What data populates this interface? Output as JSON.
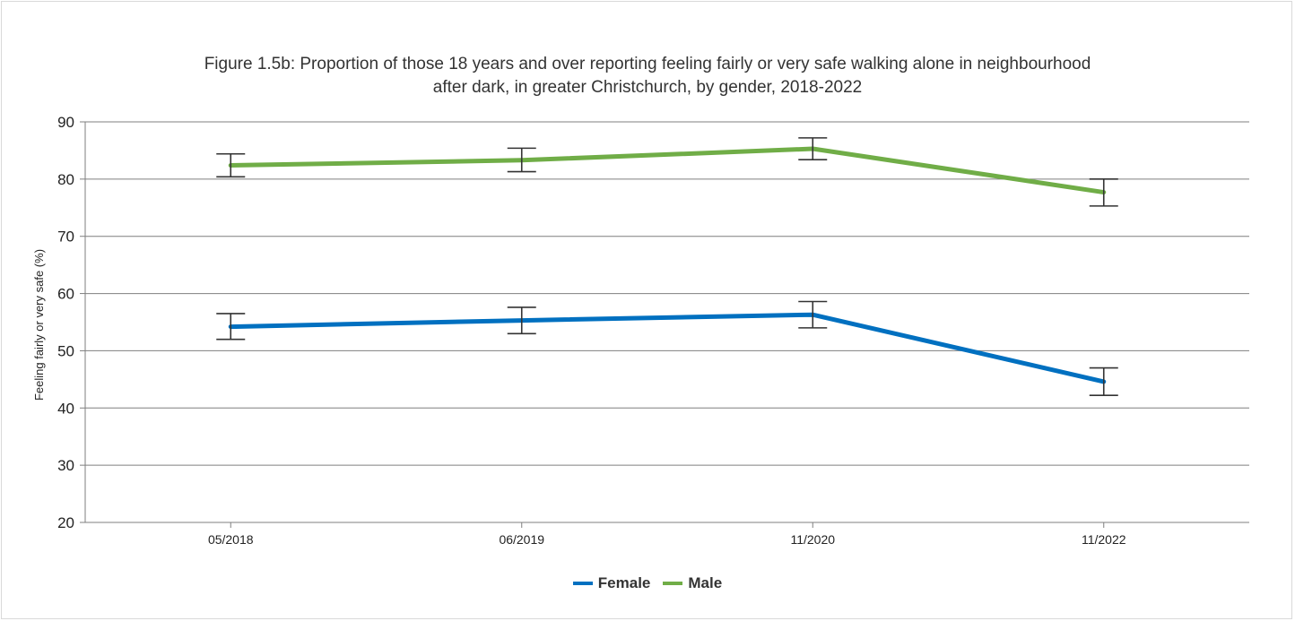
{
  "chart_data": {
    "type": "line",
    "title_lines": [
      "Figure 1.5b: Proportion of those 18 years and over reporting feeling fairly or very safe walking alone in neighbourhood",
      "after dark, in greater Christchurch, by gender, 2018-2022"
    ],
    "xlabel": "",
    "ylabel": "Feeling fairly or very safe (%)",
    "ylim": [
      20,
      90
    ],
    "yticks": [
      "20",
      "30",
      "40",
      "50",
      "60",
      "70",
      "80",
      "90"
    ],
    "grid": true,
    "legend_position": "bottom",
    "categories": [
      "05/2018",
      "06/2019",
      "11/2020",
      "11/2022"
    ],
    "series": [
      {
        "name": "Female",
        "color": "#0070c0",
        "values": [
          54.2,
          55.3,
          56.3,
          44.6
        ],
        "error_low": [
          52.0,
          53.0,
          54.0,
          42.2
        ],
        "error_high": [
          56.5,
          57.6,
          58.6,
          47.0
        ]
      },
      {
        "name": "Male",
        "color": "#70ad47",
        "values": [
          82.4,
          83.3,
          85.3,
          77.7
        ],
        "error_low": [
          80.4,
          81.3,
          83.4,
          75.3
        ],
        "error_high": [
          84.4,
          85.4,
          87.2,
          80.0
        ]
      }
    ]
  }
}
